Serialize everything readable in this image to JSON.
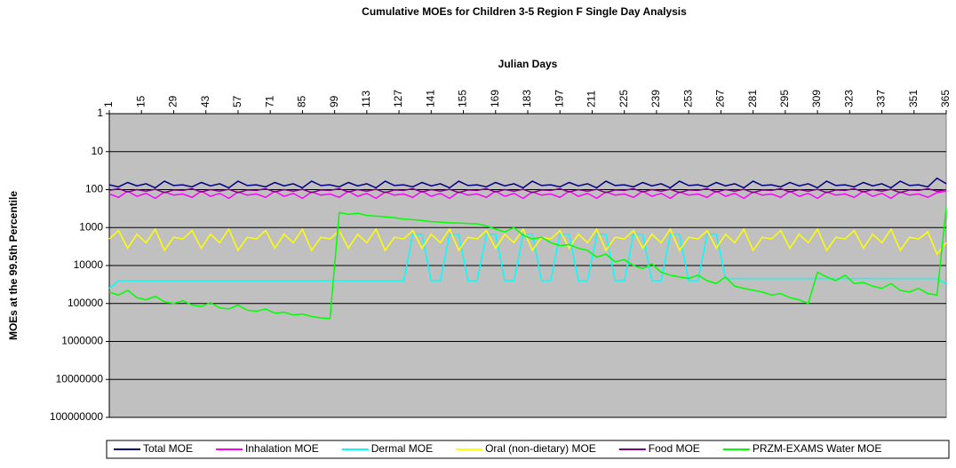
{
  "chart_data": {
    "type": "line",
    "title": "Cumulative MOEs for Children 3-5 Region F Single Day Analysis",
    "xlabel": "Julian Days",
    "ylabel": "MOEs at the 99.5th Percentile",
    "y_log": true,
    "y_reversed": true,
    "x_axis_position": "top",
    "grid": true,
    "legend": "bottom",
    "plot_background": "#c0c0c0",
    "xlim": [
      1,
      365
    ],
    "xticks": [
      1,
      15,
      29,
      43,
      57,
      71,
      85,
      99,
      113,
      127,
      141,
      155,
      169,
      183,
      197,
      211,
      225,
      239,
      253,
      267,
      281,
      295,
      309,
      323,
      337,
      351,
      365
    ],
    "ylim": [
      1,
      100000000
    ],
    "yticks": [
      1,
      10,
      100,
      1000,
      10000,
      100000,
      1000000,
      10000000,
      100000000
    ],
    "x": [
      1,
      5,
      9,
      13,
      17,
      21,
      25,
      29,
      33,
      37,
      41,
      45,
      49,
      53,
      57,
      61,
      65,
      69,
      73,
      77,
      81,
      85,
      89,
      93,
      97,
      101,
      105,
      109,
      113,
      117,
      121,
      125,
      129,
      133,
      137,
      141,
      145,
      149,
      153,
      157,
      161,
      165,
      169,
      173,
      177,
      181,
      185,
      189,
      193,
      197,
      201,
      205,
      209,
      213,
      217,
      221,
      225,
      229,
      233,
      237,
      241,
      245,
      249,
      253,
      257,
      261,
      265,
      269,
      273,
      277,
      281,
      285,
      289,
      293,
      297,
      301,
      305,
      309,
      313,
      317,
      321,
      325,
      329,
      333,
      337,
      341,
      345,
      349,
      353,
      357,
      361,
      365
    ],
    "series": [
      {
        "name": "Total MOE",
        "color": "#000080",
        "values": [
          75,
          85,
          65,
          80,
          70,
          90,
          60,
          78,
          75,
          85,
          65,
          80,
          70,
          90,
          60,
          78,
          75,
          85,
          65,
          80,
          70,
          90,
          60,
          78,
          75,
          85,
          65,
          80,
          70,
          90,
          60,
          78,
          75,
          85,
          65,
          80,
          70,
          90,
          60,
          78,
          75,
          85,
          65,
          80,
          70,
          90,
          60,
          78,
          75,
          85,
          65,
          80,
          70,
          90,
          60,
          78,
          75,
          85,
          65,
          80,
          70,
          90,
          60,
          78,
          75,
          85,
          65,
          80,
          70,
          90,
          60,
          78,
          75,
          85,
          65,
          80,
          70,
          90,
          60,
          78,
          75,
          85,
          65,
          80,
          70,
          90,
          60,
          78,
          75,
          85,
          50,
          70
        ]
      },
      {
        "name": "Inhalation MOE",
        "color": "#ff00ff",
        "values": [
          130,
          160,
          110,
          150,
          125,
          170,
          115,
          140,
          130,
          160,
          110,
          150,
          125,
          170,
          115,
          140,
          130,
          160,
          110,
          150,
          125,
          170,
          115,
          140,
          130,
          160,
          110,
          150,
          125,
          170,
          115,
          140,
          130,
          160,
          110,
          150,
          125,
          170,
          115,
          140,
          130,
          160,
          110,
          150,
          125,
          170,
          115,
          140,
          130,
          160,
          110,
          150,
          125,
          170,
          115,
          140,
          130,
          160,
          110,
          150,
          125,
          170,
          115,
          140,
          130,
          160,
          110,
          150,
          125,
          170,
          115,
          140,
          130,
          160,
          110,
          150,
          125,
          170,
          115,
          140,
          130,
          160,
          110,
          150,
          125,
          170,
          115,
          140,
          130,
          160,
          120,
          110
        ]
      },
      {
        "name": "Dermal MOE",
        "color": "#00ffff",
        "values": [
          40000,
          25000,
          25000,
          25000,
          25000,
          25000,
          25000,
          25000,
          25000,
          25000,
          25000,
          25000,
          25000,
          25000,
          25000,
          25000,
          25000,
          25000,
          25000,
          25000,
          25000,
          25000,
          25000,
          25000,
          25000,
          25000,
          25000,
          25000,
          25000,
          25000,
          25000,
          25000,
          25000,
          1500,
          1500,
          25000,
          25000,
          1500,
          1500,
          25000,
          25000,
          1500,
          1500,
          25000,
          25000,
          1500,
          1500,
          25000,
          25000,
          1500,
          1500,
          25000,
          25000,
          1500,
          1500,
          25000,
          25000,
          1500,
          1500,
          25000,
          25000,
          1500,
          1500,
          25000,
          25000,
          1500,
          1500,
          22000,
          22000,
          22000,
          22000,
          22000,
          22000,
          22000,
          22000,
          22000,
          22000,
          22000,
          22000,
          22000,
          22000,
          22000,
          22000,
          22000,
          22000,
          22000,
          22000,
          22000,
          22000,
          22000,
          22000,
          30000
        ]
      },
      {
        "name": "Oral (non-dietary) MOE",
        "color": "#ffff00",
        "values": [
          2000,
          1200,
          3500,
          1500,
          2500,
          1100,
          4000,
          1800,
          2000,
          1200,
          3500,
          1500,
          2500,
          1100,
          4000,
          1800,
          2000,
          1200,
          3500,
          1500,
          2500,
          1100,
          4000,
          1800,
          2000,
          1200,
          3500,
          1500,
          2500,
          1100,
          4000,
          1800,
          2000,
          1200,
          3500,
          1500,
          2500,
          1100,
          4000,
          1800,
          2000,
          1200,
          3500,
          1500,
          2500,
          1100,
          4000,
          1800,
          2000,
          1200,
          3500,
          1500,
          2500,
          1100,
          4000,
          1800,
          2000,
          1200,
          3500,
          1500,
          2500,
          1100,
          4000,
          1800,
          2000,
          1200,
          3500,
          1500,
          2500,
          1100,
          4000,
          1800,
          2000,
          1200,
          3500,
          1500,
          2500,
          1100,
          4000,
          1800,
          2000,
          1200,
          3500,
          1500,
          2500,
          1100,
          4000,
          1800,
          2000,
          1300,
          5000,
          2500
        ]
      },
      {
        "name": "Food MOE",
        "color": "#800080",
        "values": [
          105,
          95,
          115,
          100,
          110,
          98,
          120,
          102,
          105,
          95,
          115,
          100,
          110,
          98,
          120,
          102,
          105,
          95,
          115,
          100,
          110,
          98,
          120,
          102,
          105,
          95,
          115,
          100,
          110,
          98,
          120,
          102,
          105,
          95,
          115,
          100,
          110,
          98,
          120,
          102,
          105,
          95,
          115,
          100,
          110,
          98,
          120,
          102,
          105,
          95,
          115,
          100,
          110,
          98,
          120,
          102,
          105,
          95,
          115,
          100,
          110,
          98,
          120,
          102,
          105,
          95,
          115,
          100,
          110,
          98,
          120,
          102,
          105,
          95,
          115,
          100,
          110,
          98,
          120,
          102,
          105,
          95,
          115,
          100,
          110,
          98,
          120,
          102,
          105,
          95,
          110,
          100
        ]
      },
      {
        "name": "PRZM-EXAMS Water MOE",
        "color": "#00ff00",
        "values": [
          50000,
          60000,
          45000,
          70000,
          80000,
          65000,
          90000,
          100000,
          85000,
          110000,
          120000,
          95000,
          130000,
          140000,
          110000,
          150000,
          160000,
          140000,
          180000,
          170000,
          200000,
          190000,
          220000,
          240000,
          250000,
          400,
          450,
          420,
          480,
          500,
          520,
          550,
          600,
          620,
          650,
          700,
          720,
          750,
          760,
          780,
          800,
          900,
          1100,
          1300,
          1000,
          1600,
          2000,
          1800,
          2500,
          3000,
          2800,
          3500,
          4000,
          6000,
          5000,
          8000,
          7000,
          10000,
          12000,
          9000,
          15000,
          18000,
          20000,
          22000,
          18000,
          25000,
          30000,
          20000,
          35000,
          40000,
          45000,
          50000,
          60000,
          55000,
          70000,
          80000,
          100000,
          15000,
          20000,
          25000,
          18000,
          30000,
          28000,
          35000,
          40000,
          30000,
          45000,
          50000,
          40000,
          55000,
          60000,
          300
        ]
      }
    ]
  }
}
